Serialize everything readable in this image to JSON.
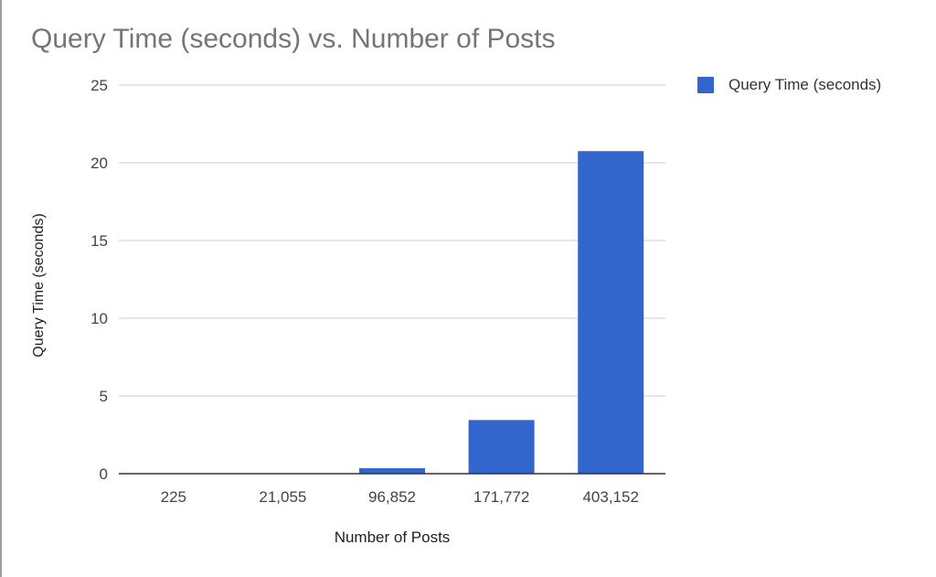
{
  "chart_data": {
    "type": "bar",
    "title": "Query Time (seconds) vs. Number of Posts",
    "xlabel": "Number of Posts",
    "ylabel": "Query Time (seconds)",
    "categories": [
      "225",
      "21,055",
      "96,852",
      "171,772",
      "403,152"
    ],
    "series": [
      {
        "name": "Query Time (seconds)",
        "values": [
          0.01,
          0.02,
          0.35,
          3.45,
          20.75
        ],
        "color": "#3366cc"
      }
    ],
    "ylim": [
      0,
      25
    ],
    "yticks": [
      "0",
      "5",
      "10",
      "15",
      "20",
      "25"
    ],
    "grid": true,
    "legend": "top-right"
  }
}
